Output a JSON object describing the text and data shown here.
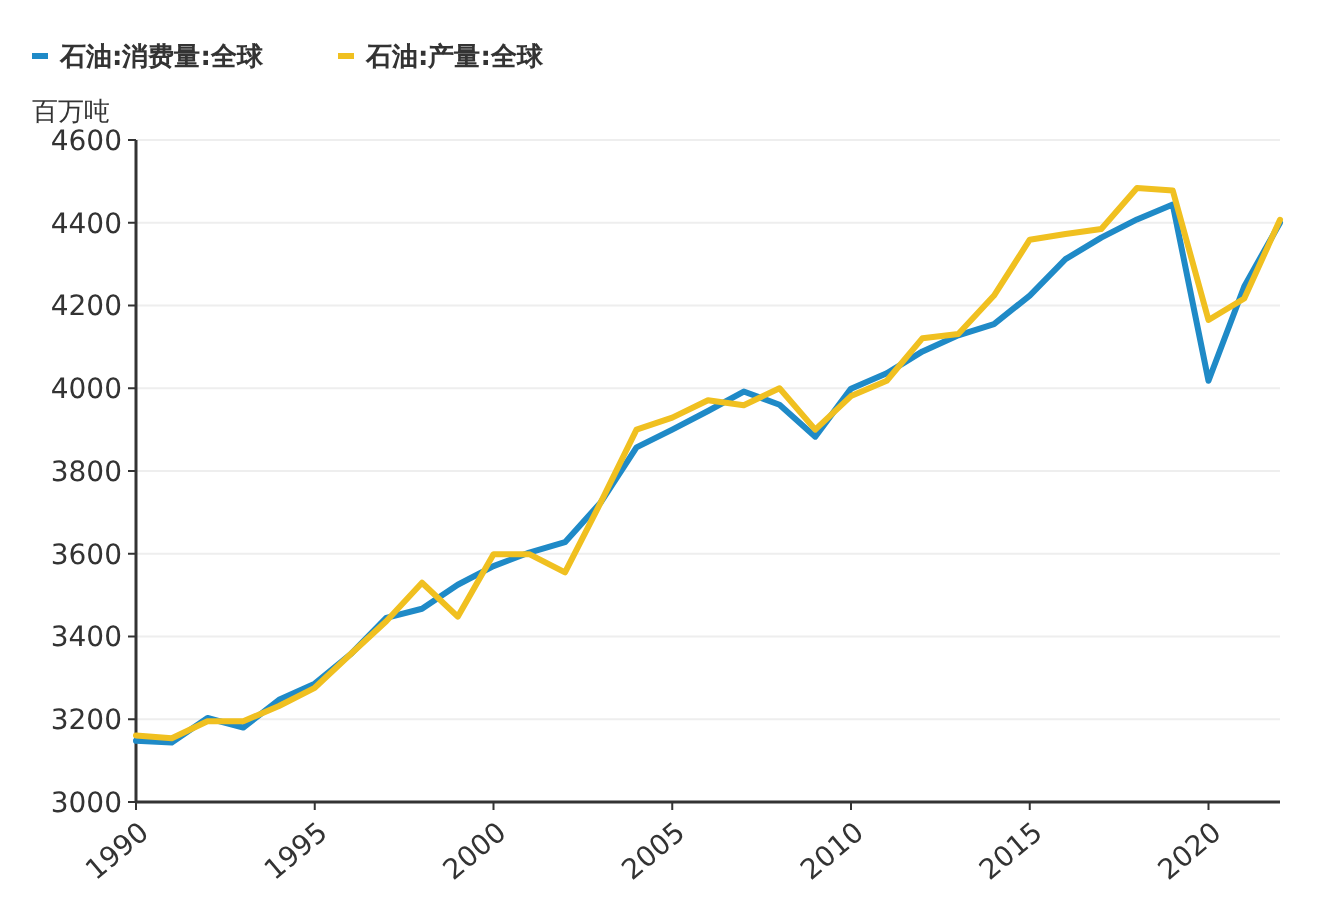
{
  "chart_data": {
    "type": "line",
    "ylabel": "百万吨",
    "x": [
      1990,
      1991,
      1992,
      1993,
      1994,
      1995,
      1996,
      1997,
      1998,
      1999,
      2000,
      2001,
      2002,
      2003,
      2004,
      2005,
      2006,
      2007,
      2008,
      2009,
      2010,
      2011,
      2012,
      2013,
      2014,
      2015,
      2016,
      2017,
      2018,
      2019,
      2020,
      2021,
      2022
    ],
    "series": [
      {
        "name": "石油:消费量:全球",
        "color": "#1f8ac7",
        "values": [
          3148,
          3144,
          3203,
          3180,
          3247,
          3286,
          3357,
          3445,
          3467,
          3525,
          3570,
          3603,
          3628,
          3724,
          3857,
          3900,
          3945,
          3992,
          3960,
          3883,
          3999,
          4036,
          4089,
          4128,
          4155,
          4224,
          4312,
          4364,
          4408,
          4444,
          4018,
          4246,
          4400
        ]
      },
      {
        "name": "石油:产量:全球",
        "color": "#f0c020",
        "values": [
          3161,
          3154,
          3195,
          3195,
          3232,
          3276,
          3357,
          3437,
          3530,
          3448,
          3599,
          3599,
          3555,
          3724,
          3900,
          3929,
          3971,
          3959,
          4000,
          3900,
          3981,
          4018,
          4121,
          4131,
          4224,
          4359,
          4373,
          4385,
          4484,
          4478,
          4165,
          4217,
          4407
        ]
      }
    ],
    "xlim": [
      1990,
      2022
    ],
    "xticks": [
      1990,
      1995,
      2000,
      2005,
      2010,
      2015,
      2020
    ],
    "ylim": [
      3000,
      4600
    ],
    "yticks": [
      3000,
      3200,
      3400,
      3600,
      3800,
      4000,
      4200,
      4400,
      4600
    ],
    "grid": "y",
    "legend": "top left",
    "marker": "none",
    "line_style": "solid"
  }
}
